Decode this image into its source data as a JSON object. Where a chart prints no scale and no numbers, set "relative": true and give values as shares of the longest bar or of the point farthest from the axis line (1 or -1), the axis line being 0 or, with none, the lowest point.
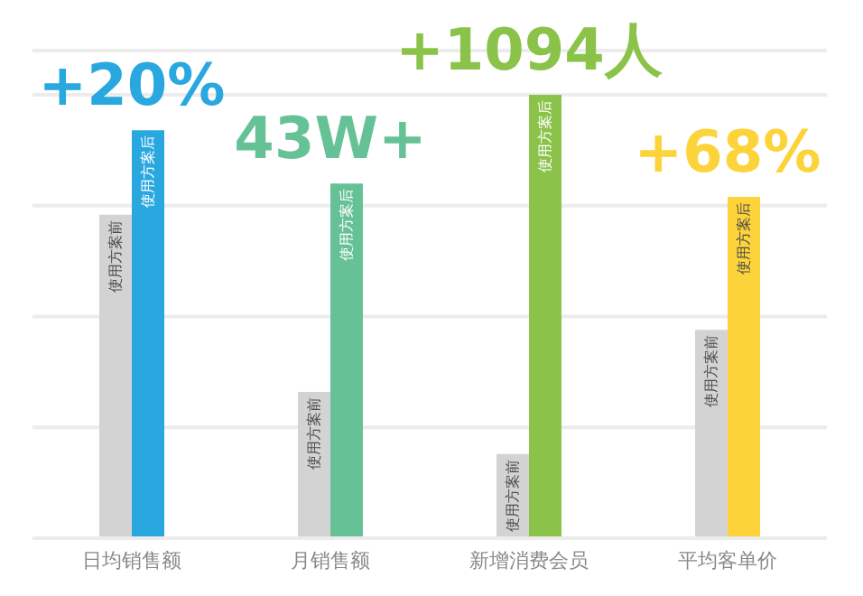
{
  "chart_data": {
    "type": "bar",
    "relative": true,
    "categories": [
      "日均销售额",
      "月销售额",
      "新增消费会员",
      "平均客单价"
    ],
    "series": [
      {
        "name": "使用方案前",
        "color": "#d3d3d3",
        "values": [
          0.73,
          0.33,
          0.19,
          0.47
        ]
      },
      {
        "name": "使用方案后",
        "colors": [
          "#29a8e0",
          "#66c296",
          "#8bc34a",
          "#fdd33a"
        ],
        "values": [
          0.92,
          0.8,
          1,
          0.77
        ]
      }
    ],
    "annotations": [
      {
        "text": "+20%",
        "x": "日均销售额",
        "y": 0.92
      },
      {
        "text": "43W+",
        "x": "月销售额",
        "y": 0.8
      },
      {
        "text": "+1094人",
        "x": "新增消费会员",
        "y": 1
      },
      {
        "text": "+68%",
        "x": "平均客单价",
        "y": 0.77
      }
    ],
    "grid": "y",
    "legend": false
  }
}
